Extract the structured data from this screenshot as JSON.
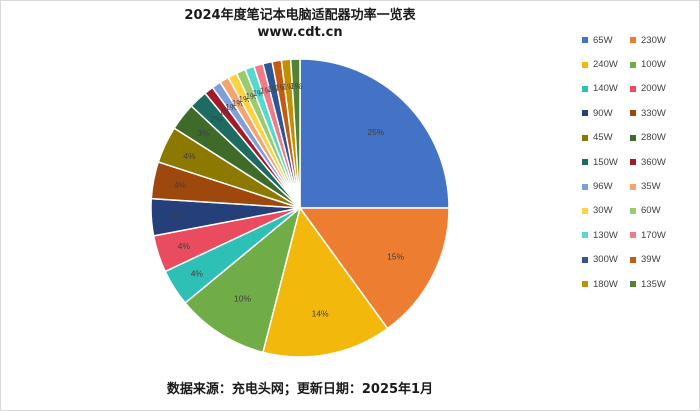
{
  "chart_data": {
    "type": "pie",
    "title": "2024年度笔记本电脑适配器功率一览表",
    "subtitle": "www.cdt.cn",
    "footer": "数据来源：充电头网；更新日期：2025年1月",
    "legend_position": "right",
    "slices": [
      {
        "name": "65W",
        "value": 25,
        "label": "25%",
        "color": "#4472C4"
      },
      {
        "name": "230W",
        "value": 15,
        "label": "15%",
        "color": "#ED7D31"
      },
      {
        "name": "240W",
        "value": 14,
        "label": "14%",
        "color": "#F2B90C"
      },
      {
        "name": "100W",
        "value": 10,
        "label": "10%",
        "color": "#70AD47"
      },
      {
        "name": "140W",
        "value": 4,
        "label": "4%",
        "color": "#2EC0B5"
      },
      {
        "name": "200W",
        "value": 4,
        "label": "4%",
        "color": "#E84C5E"
      },
      {
        "name": "90W",
        "value": 4,
        "label": "4%",
        "color": "#243F7A"
      },
      {
        "name": "330W",
        "value": 4,
        "label": "4%",
        "color": "#9E480E"
      },
      {
        "name": "45W",
        "value": 4,
        "label": "4%",
        "color": "#8C7A00"
      },
      {
        "name": "280W",
        "value": 3,
        "label": "3%",
        "color": "#3E6B2A"
      },
      {
        "name": "150W",
        "value": 2,
        "label": "2%",
        "color": "#1E6B63"
      },
      {
        "name": "360W",
        "value": 1,
        "label": "1%",
        "color": "#A01C2A"
      },
      {
        "name": "96W",
        "value": 1,
        "label": "1%",
        "color": "#7EA0D8"
      },
      {
        "name": "35W",
        "value": 1,
        "label": "1%",
        "color": "#F4A46E"
      },
      {
        "name": "30W",
        "value": 1,
        "label": "1%",
        "color": "#FFD23F"
      },
      {
        "name": "60W",
        "value": 1,
        "label": "1%",
        "color": "#9CCB6E"
      },
      {
        "name": "130W",
        "value": 1,
        "label": "1%",
        "color": "#55D8CE"
      },
      {
        "name": "170W",
        "value": 1,
        "label": "1%",
        "color": "#F07A8A"
      },
      {
        "name": "300W",
        "value": 1,
        "label": "1%",
        "color": "#2F5597"
      },
      {
        "name": "39W",
        "value": 1,
        "label": "1%",
        "color": "#C55A11"
      },
      {
        "name": "180W",
        "value": 1,
        "label": "1%",
        "color": "#BF9000"
      },
      {
        "name": "135W",
        "value": 1,
        "label": "1%",
        "color": "#548235"
      }
    ]
  }
}
